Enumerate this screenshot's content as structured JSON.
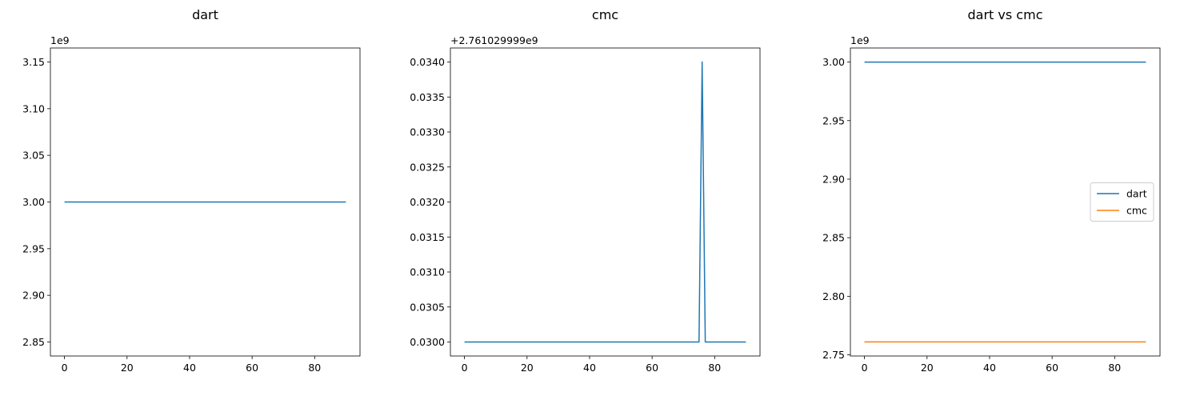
{
  "chart_data": [
    {
      "type": "line",
      "title": "dart",
      "xlabel": "",
      "ylabel": "",
      "offset_text": "1e9",
      "xlim": [
        -4.5,
        94.5
      ],
      "ylim": [
        2.835,
        3.165
      ],
      "x_ticks": [
        0,
        20,
        40,
        60,
        80
      ],
      "x_tick_labels": [
        "0",
        "20",
        "40",
        "60",
        "80"
      ],
      "y_ticks": [
        2.85,
        2.9,
        2.95,
        3.0,
        3.05,
        3.1,
        3.15
      ],
      "y_tick_labels": [
        "2.85",
        "2.90",
        "2.95",
        "3.00",
        "3.05",
        "3.10",
        "3.15"
      ],
      "grid": false,
      "series": [
        {
          "color": "#1f77b4",
          "points": [
            [
              0,
              3.0
            ],
            [
              90,
              3.0
            ]
          ]
        }
      ]
    },
    {
      "type": "line",
      "title": "cmc",
      "xlabel": "",
      "ylabel": "",
      "offset_text": "+2.761029999e9",
      "xlim": [
        -4.5,
        94.5
      ],
      "ylim": [
        0.0298,
        0.0342
      ],
      "x_ticks": [
        0,
        20,
        40,
        60,
        80
      ],
      "x_tick_labels": [
        "0",
        "20",
        "40",
        "60",
        "80"
      ],
      "y_ticks": [
        0.03,
        0.0305,
        0.031,
        0.0315,
        0.032,
        0.0325,
        0.033,
        0.0335,
        0.034
      ],
      "y_tick_labels": [
        "0.0300",
        "0.0305",
        "0.0310",
        "0.0315",
        "0.0320",
        "0.0325",
        "0.0330",
        "0.0335",
        "0.0340"
      ],
      "grid": false,
      "series": [
        {
          "color": "#1f77b4",
          "points": [
            [
              0,
              0.03
            ],
            [
              75,
              0.03
            ],
            [
              76,
              0.034
            ],
            [
              77,
              0.03
            ],
            [
              90,
              0.03
            ]
          ]
        }
      ]
    },
    {
      "type": "line",
      "title": "dart vs cmc",
      "xlabel": "",
      "ylabel": "",
      "offset_text": "1e9",
      "xlim": [
        -4.5,
        94.5
      ],
      "ylim": [
        2.749,
        3.012
      ],
      "x_ticks": [
        0,
        20,
        40,
        60,
        80
      ],
      "x_tick_labels": [
        "0",
        "20",
        "40",
        "60",
        "80"
      ],
      "y_ticks": [
        2.75,
        2.8,
        2.85,
        2.9,
        2.95,
        3.0
      ],
      "y_tick_labels": [
        "2.75",
        "2.80",
        "2.85",
        "2.90",
        "2.95",
        "3.00"
      ],
      "grid": false,
      "legend_position": "center-right",
      "series": [
        {
          "name": "dart",
          "color": "#1f77b4",
          "points": [
            [
              0,
              3.0
            ],
            [
              90,
              3.0
            ]
          ]
        },
        {
          "name": "cmc",
          "color": "#ff7f0e",
          "points": [
            [
              0,
              2.76103
            ],
            [
              90,
              2.76103
            ]
          ]
        }
      ]
    }
  ]
}
